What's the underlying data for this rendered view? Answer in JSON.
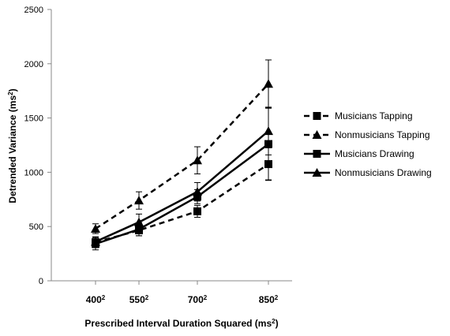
{
  "chart_data": {
    "type": "line",
    "x_categories": [
      {
        "base": "400",
        "exp": "2"
      },
      {
        "base": "550",
        "exp": "2"
      },
      {
        "base": "700",
        "exp": "2"
      },
      {
        "base": "850",
        "exp": "2"
      }
    ],
    "xlabel": {
      "text": "Prescribed Interval Duration Squared (ms",
      "sup": "2",
      "close": ")"
    },
    "ylabel": {
      "text": "Detrended Variance (ms",
      "sup": "2",
      "close": ")"
    },
    "ylim": [
      0,
      2500
    ],
    "yticks": [
      0,
      500,
      1000,
      1500,
      2000,
      2500
    ],
    "grid": false,
    "legend_position": "right",
    "series": [
      {
        "name": "Musicians Tapping",
        "marker": "square",
        "dash": true,
        "values": [
          355,
          465,
          640,
          1075
        ],
        "errors": [
          50,
          50,
          55,
          150
        ]
      },
      {
        "name": "Nonmusicians Tapping",
        "marker": "triangle",
        "dash": true,
        "values": [
          480,
          740,
          1110,
          1815
        ],
        "errors": [
          45,
          80,
          125,
          220
        ]
      },
      {
        "name": "Musicians Drawing",
        "marker": "square",
        "dash": false,
        "values": [
          340,
          475,
          775,
          1260
        ],
        "errors": [
          55,
          60,
          65,
          330
        ]
      },
      {
        "name": "Nonmusicians Drawing",
        "marker": "triangle",
        "dash": false,
        "values": [
          360,
          540,
          820,
          1380
        ],
        "errors": [
          45,
          75,
          85,
          220
        ]
      }
    ]
  }
}
